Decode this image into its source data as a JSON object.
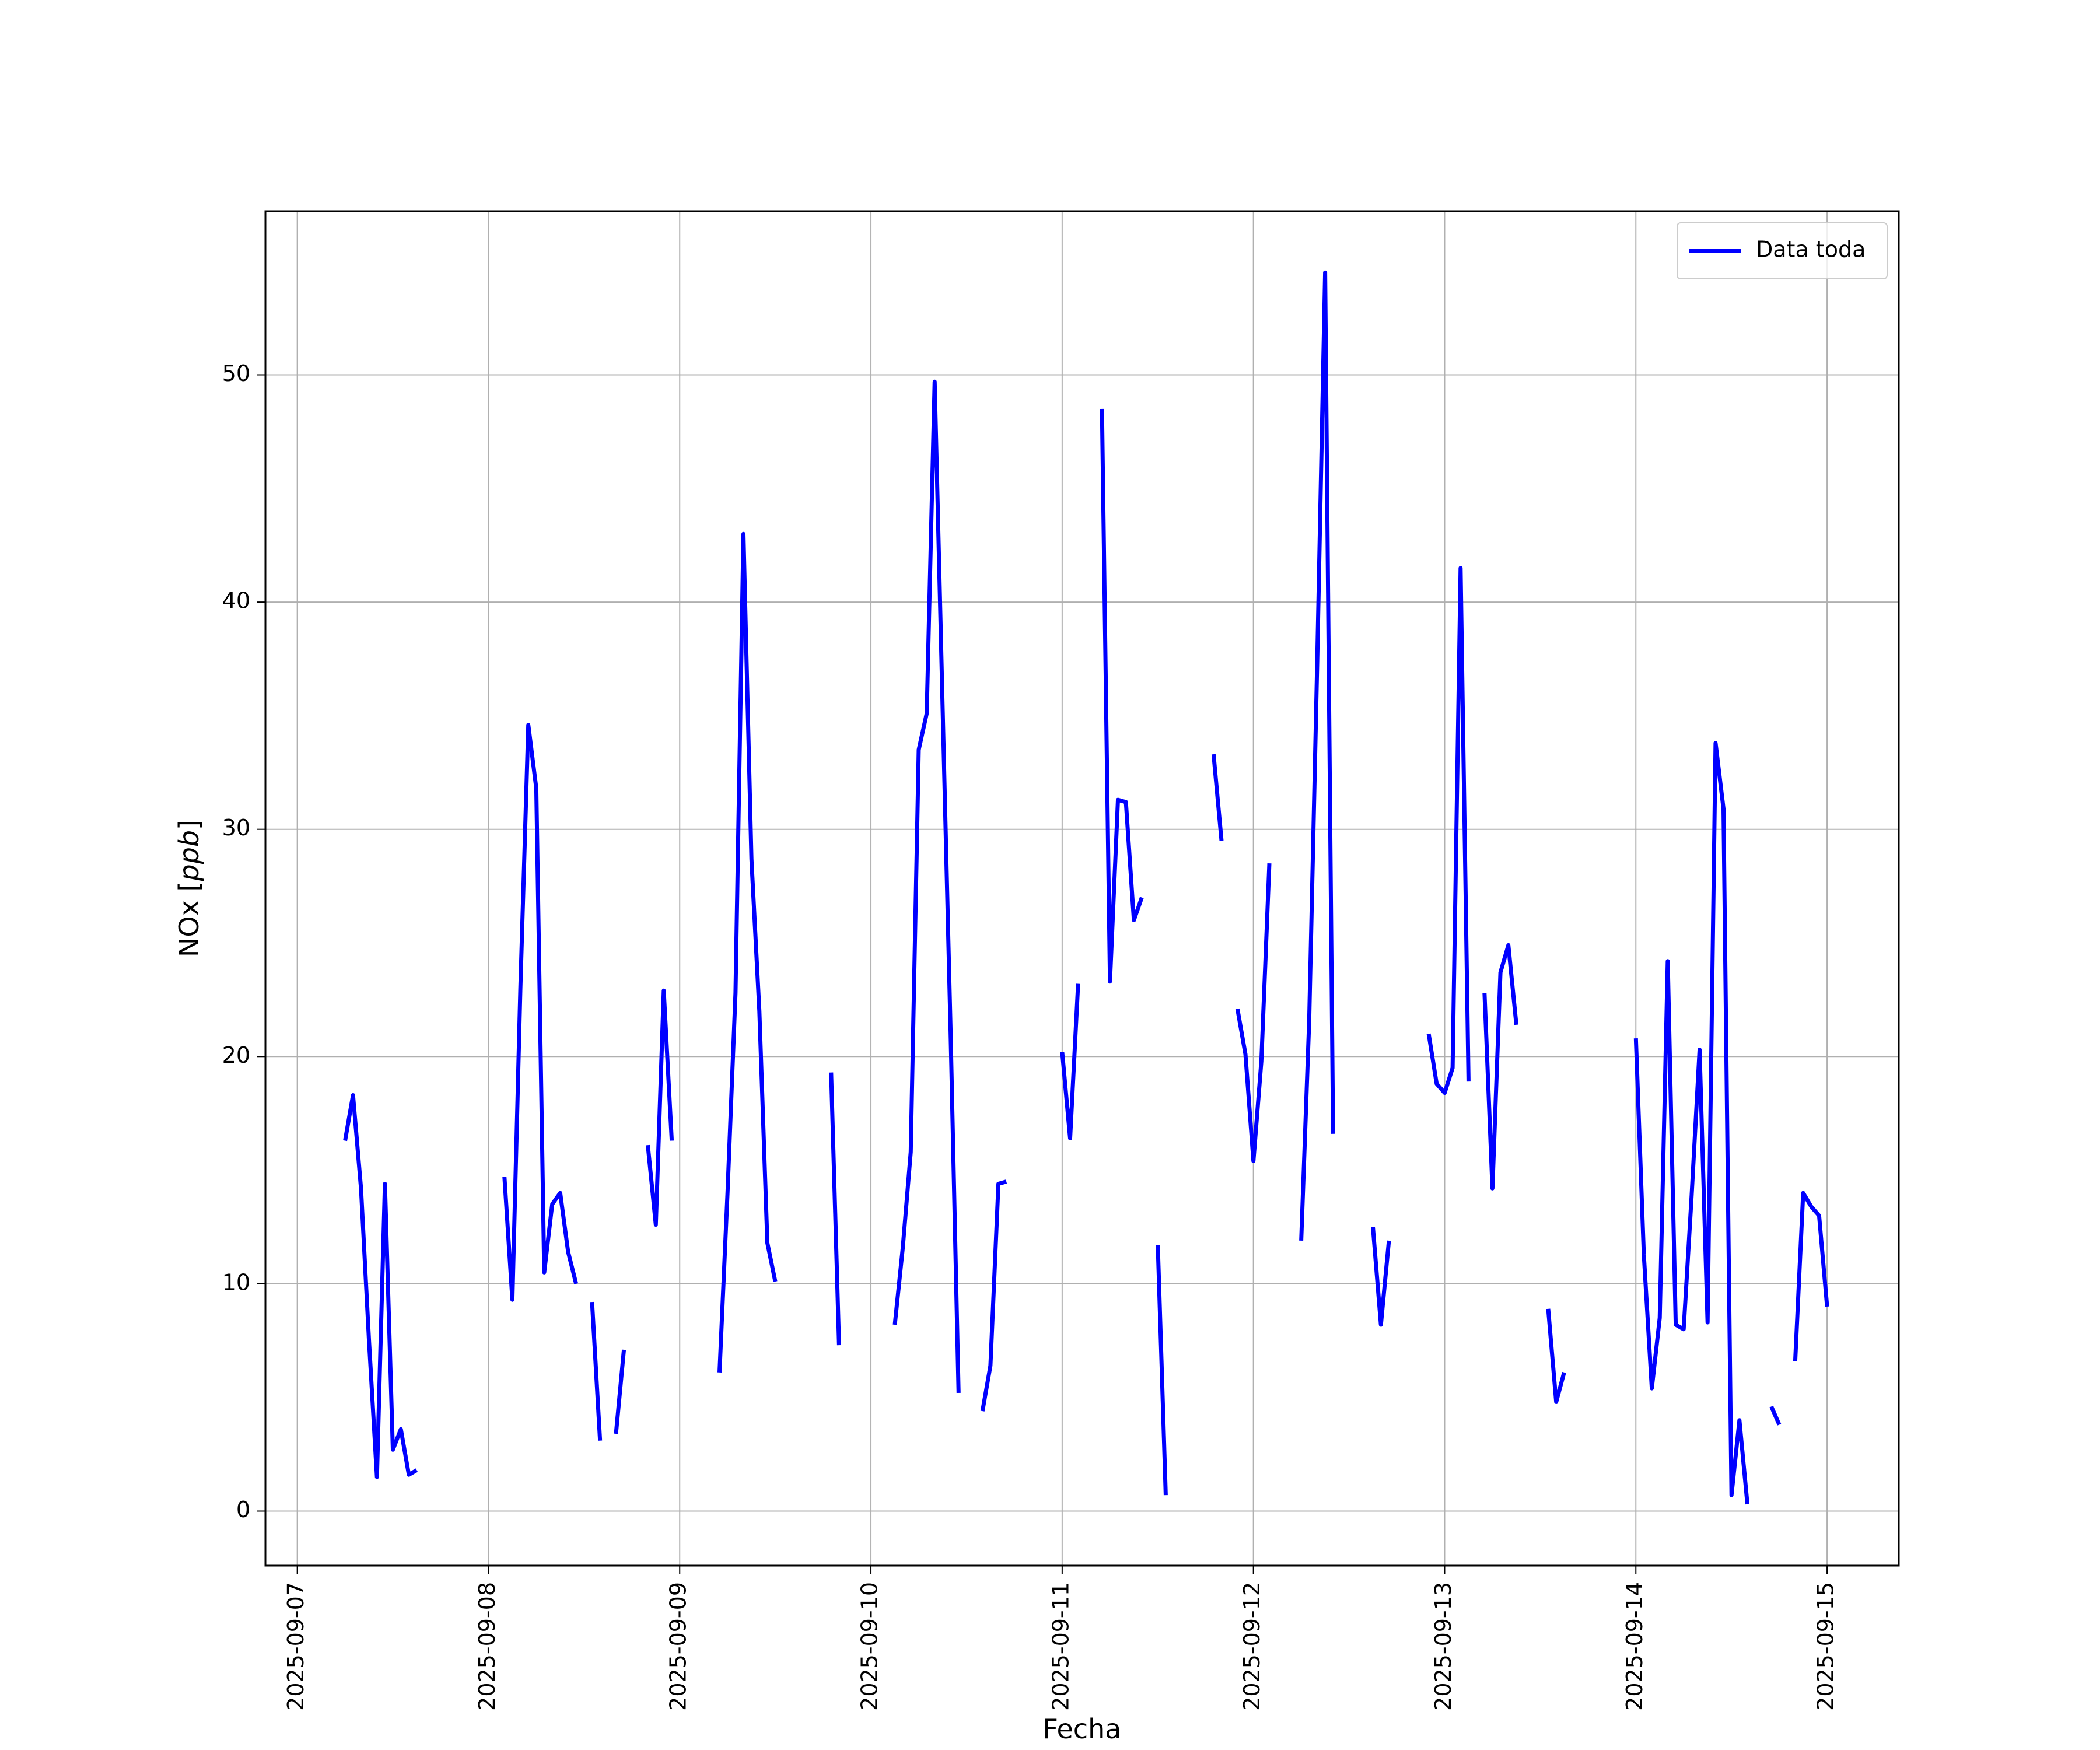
{
  "chart_data": {
    "type": "line",
    "title": "",
    "xlabel": "Fecha",
    "ylabel": "NOx [ppb]",
    "ylabel_main": "NOx [",
    "ylabel_unit": "ppb",
    "ylabel_close": "]",
    "x_axis": "date",
    "xlim": [
      "2025-09-06T20:00",
      "2025-09-15T09:00"
    ],
    "ylim": [
      -2.4,
      57.2
    ],
    "xticks": [
      "2025-09-07",
      "2025-09-08",
      "2025-09-09",
      "2025-09-10",
      "2025-09-11",
      "2025-09-12",
      "2025-09-13",
      "2025-09-14",
      "2025-09-15"
    ],
    "yticks": [
      0,
      10,
      20,
      30,
      40,
      50
    ],
    "grid": true,
    "legend_position": "upper-right",
    "line_color": "#0000ff",
    "series": [
      {
        "name": "Data toda",
        "segments": [
          [
            [
              "2025-09-07T06:00",
              16.3
            ],
            [
              "2025-09-07T07:00",
              18.3
            ],
            [
              "2025-09-07T08:00",
              14.2
            ],
            [
              "2025-09-07T09:00",
              7.5
            ],
            [
              "2025-09-07T10:00",
              1.5
            ],
            [
              "2025-09-07T11:00",
              14.4
            ],
            [
              "2025-09-07T12:00",
              2.7
            ],
            [
              "2025-09-07T13:00",
              3.6
            ],
            [
              "2025-09-07T14:00",
              1.6
            ],
            [
              "2025-09-07T15:00",
              1.8
            ]
          ],
          [
            [
              "2025-09-08T02:00",
              14.7
            ],
            [
              "2025-09-08T03:00",
              9.3
            ],
            [
              "2025-09-08T04:00",
              23.0
            ],
            [
              "2025-09-08T05:00",
              34.6
            ],
            [
              "2025-09-08T06:00",
              31.8
            ],
            [
              "2025-09-08T07:00",
              10.5
            ],
            [
              "2025-09-08T08:00",
              13.5
            ],
            [
              "2025-09-08T09:00",
              14.0
            ],
            [
              "2025-09-08T10:00",
              11.4
            ],
            [
              "2025-09-08T11:00",
              10.0
            ]
          ],
          [
            [
              "2025-09-08T13:00",
              9.2
            ],
            [
              "2025-09-08T14:00",
              3.1
            ]
          ],
          [
            [
              "2025-09-08T16:00",
              3.4
            ],
            [
              "2025-09-08T17:00",
              7.1
            ]
          ],
          [
            [
              "2025-09-08T20:00",
              16.1
            ],
            [
              "2025-09-08T21:00",
              12.6
            ],
            [
              "2025-09-08T22:00",
              22.9
            ],
            [
              "2025-09-08T23:00",
              16.3
            ]
          ],
          [
            [
              "2025-09-09T05:00",
              6.1
            ],
            [
              "2025-09-09T06:00",
              14.0
            ],
            [
              "2025-09-09T07:00",
              22.8
            ],
            [
              "2025-09-09T08:00",
              43.0
            ],
            [
              "2025-09-09T09:00",
              28.7
            ],
            [
              "2025-09-09T10:00",
              22.0
            ],
            [
              "2025-09-09T11:00",
              11.8
            ],
            [
              "2025-09-09T12:00",
              10.1
            ]
          ],
          [
            [
              "2025-09-09T19:00",
              19.3
            ],
            [
              "2025-09-09T20:00",
              7.3
            ]
          ],
          [
            [
              "2025-09-10T03:00",
              8.2
            ],
            [
              "2025-09-10T04:00",
              11.6
            ],
            [
              "2025-09-10T05:00",
              15.8
            ],
            [
              "2025-09-10T06:00",
              33.5
            ],
            [
              "2025-09-10T07:00",
              35.1
            ],
            [
              "2025-09-10T08:00",
              49.7
            ],
            [
              "2025-09-10T09:00",
              35.3
            ],
            [
              "2025-09-10T10:00",
              21.1
            ],
            [
              "2025-09-10T11:00",
              5.2
            ]
          ],
          [
            [
              "2025-09-10T14:00",
              4.4
            ],
            [
              "2025-09-10T15:00",
              6.4
            ],
            [
              "2025-09-10T16:00",
              14.4
            ],
            [
              "2025-09-10T17:00",
              14.5
            ]
          ],
          [
            [
              "2025-09-11T00:00",
              20.2
            ],
            [
              "2025-09-11T01:00",
              16.4
            ],
            [
              "2025-09-11T02:00",
              23.2
            ]
          ],
          [
            [
              "2025-09-11T05:00",
              48.5
            ],
            [
              "2025-09-11T06:00",
              23.3
            ],
            [
              "2025-09-11T07:00",
              31.3
            ],
            [
              "2025-09-11T08:00",
              31.2
            ],
            [
              "2025-09-11T09:00",
              26.0
            ],
            [
              "2025-09-11T10:00",
              27.0
            ]
          ],
          [
            [
              "2025-09-11T12:00",
              11.7
            ],
            [
              "2025-09-11T13:00",
              0.7
            ]
          ],
          [
            [
              "2025-09-11T19:00",
              33.3
            ],
            [
              "2025-09-11T20:00",
              29.5
            ]
          ],
          [
            [
              "2025-09-11T22:00",
              22.1
            ],
            [
              "2025-09-11T23:00",
              20.1
            ],
            [
              "2025-09-12T00:00",
              15.4
            ],
            [
              "2025-09-12T01:00",
              19.8
            ],
            [
              "2025-09-12T02:00",
              28.5
            ]
          ],
          [
            [
              "2025-09-12T06:00",
              11.9
            ],
            [
              "2025-09-12T07:00",
              21.6
            ],
            [
              "2025-09-12T08:00",
              37.2
            ],
            [
              "2025-09-12T09:00",
              54.5
            ],
            [
              "2025-09-12T10:00",
              16.6
            ]
          ],
          [
            [
              "2025-09-12T15:00",
              12.5
            ],
            [
              "2025-09-12T16:00",
              8.2
            ],
            [
              "2025-09-12T17:00",
              11.9
            ]
          ],
          [
            [
              "2025-09-12T22:00",
              21.0
            ],
            [
              "2025-09-12T23:00",
              18.8
            ],
            [
              "2025-09-13T00:00",
              18.4
            ],
            [
              "2025-09-13T01:00",
              19.5
            ],
            [
              "2025-09-13T02:00",
              41.5
            ],
            [
              "2025-09-13T03:00",
              18.9
            ]
          ],
          [
            [
              "2025-09-13T05:00",
              22.8
            ],
            [
              "2025-09-13T06:00",
              14.2
            ],
            [
              "2025-09-13T07:00",
              23.7
            ],
            [
              "2025-09-13T08:00",
              24.9
            ],
            [
              "2025-09-13T09:00",
              21.4
            ]
          ],
          [
            [
              "2025-09-13T13:00",
              8.9
            ],
            [
              "2025-09-13T14:00",
              4.8
            ],
            [
              "2025-09-13T15:00",
              6.1
            ]
          ],
          [
            [
              "2025-09-14T00:00",
              20.8
            ],
            [
              "2025-09-14T01:00",
              11.3
            ],
            [
              "2025-09-14T02:00",
              5.4
            ],
            [
              "2025-09-14T03:00",
              8.5
            ],
            [
              "2025-09-14T04:00",
              24.2
            ],
            [
              "2025-09-14T05:00",
              8.2
            ],
            [
              "2025-09-14T06:00",
              8.0
            ],
            [
              "2025-09-14T07:00",
              13.9
            ],
            [
              "2025-09-14T08:00",
              20.3
            ],
            [
              "2025-09-14T09:00",
              8.3
            ],
            [
              "2025-09-14T10:00",
              33.8
            ],
            [
              "2025-09-14T11:00",
              30.9
            ],
            [
              "2025-09-14T12:00",
              0.7
            ],
            [
              "2025-09-14T13:00",
              4.0
            ],
            [
              "2025-09-14T14:00",
              0.3
            ]
          ],
          [
            [
              "2025-09-14T17:00",
              4.6
            ],
            [
              "2025-09-14T18:00",
              3.8
            ]
          ],
          [
            [
              "2025-09-14T20:00",
              6.6
            ],
            [
              "2025-09-14T21:00",
              14.0
            ],
            [
              "2025-09-14T22:00",
              13.4
            ],
            [
              "2025-09-14T23:00",
              13.0
            ],
            [
              "2025-09-15T00:00",
              9.0
            ]
          ]
        ]
      }
    ]
  }
}
